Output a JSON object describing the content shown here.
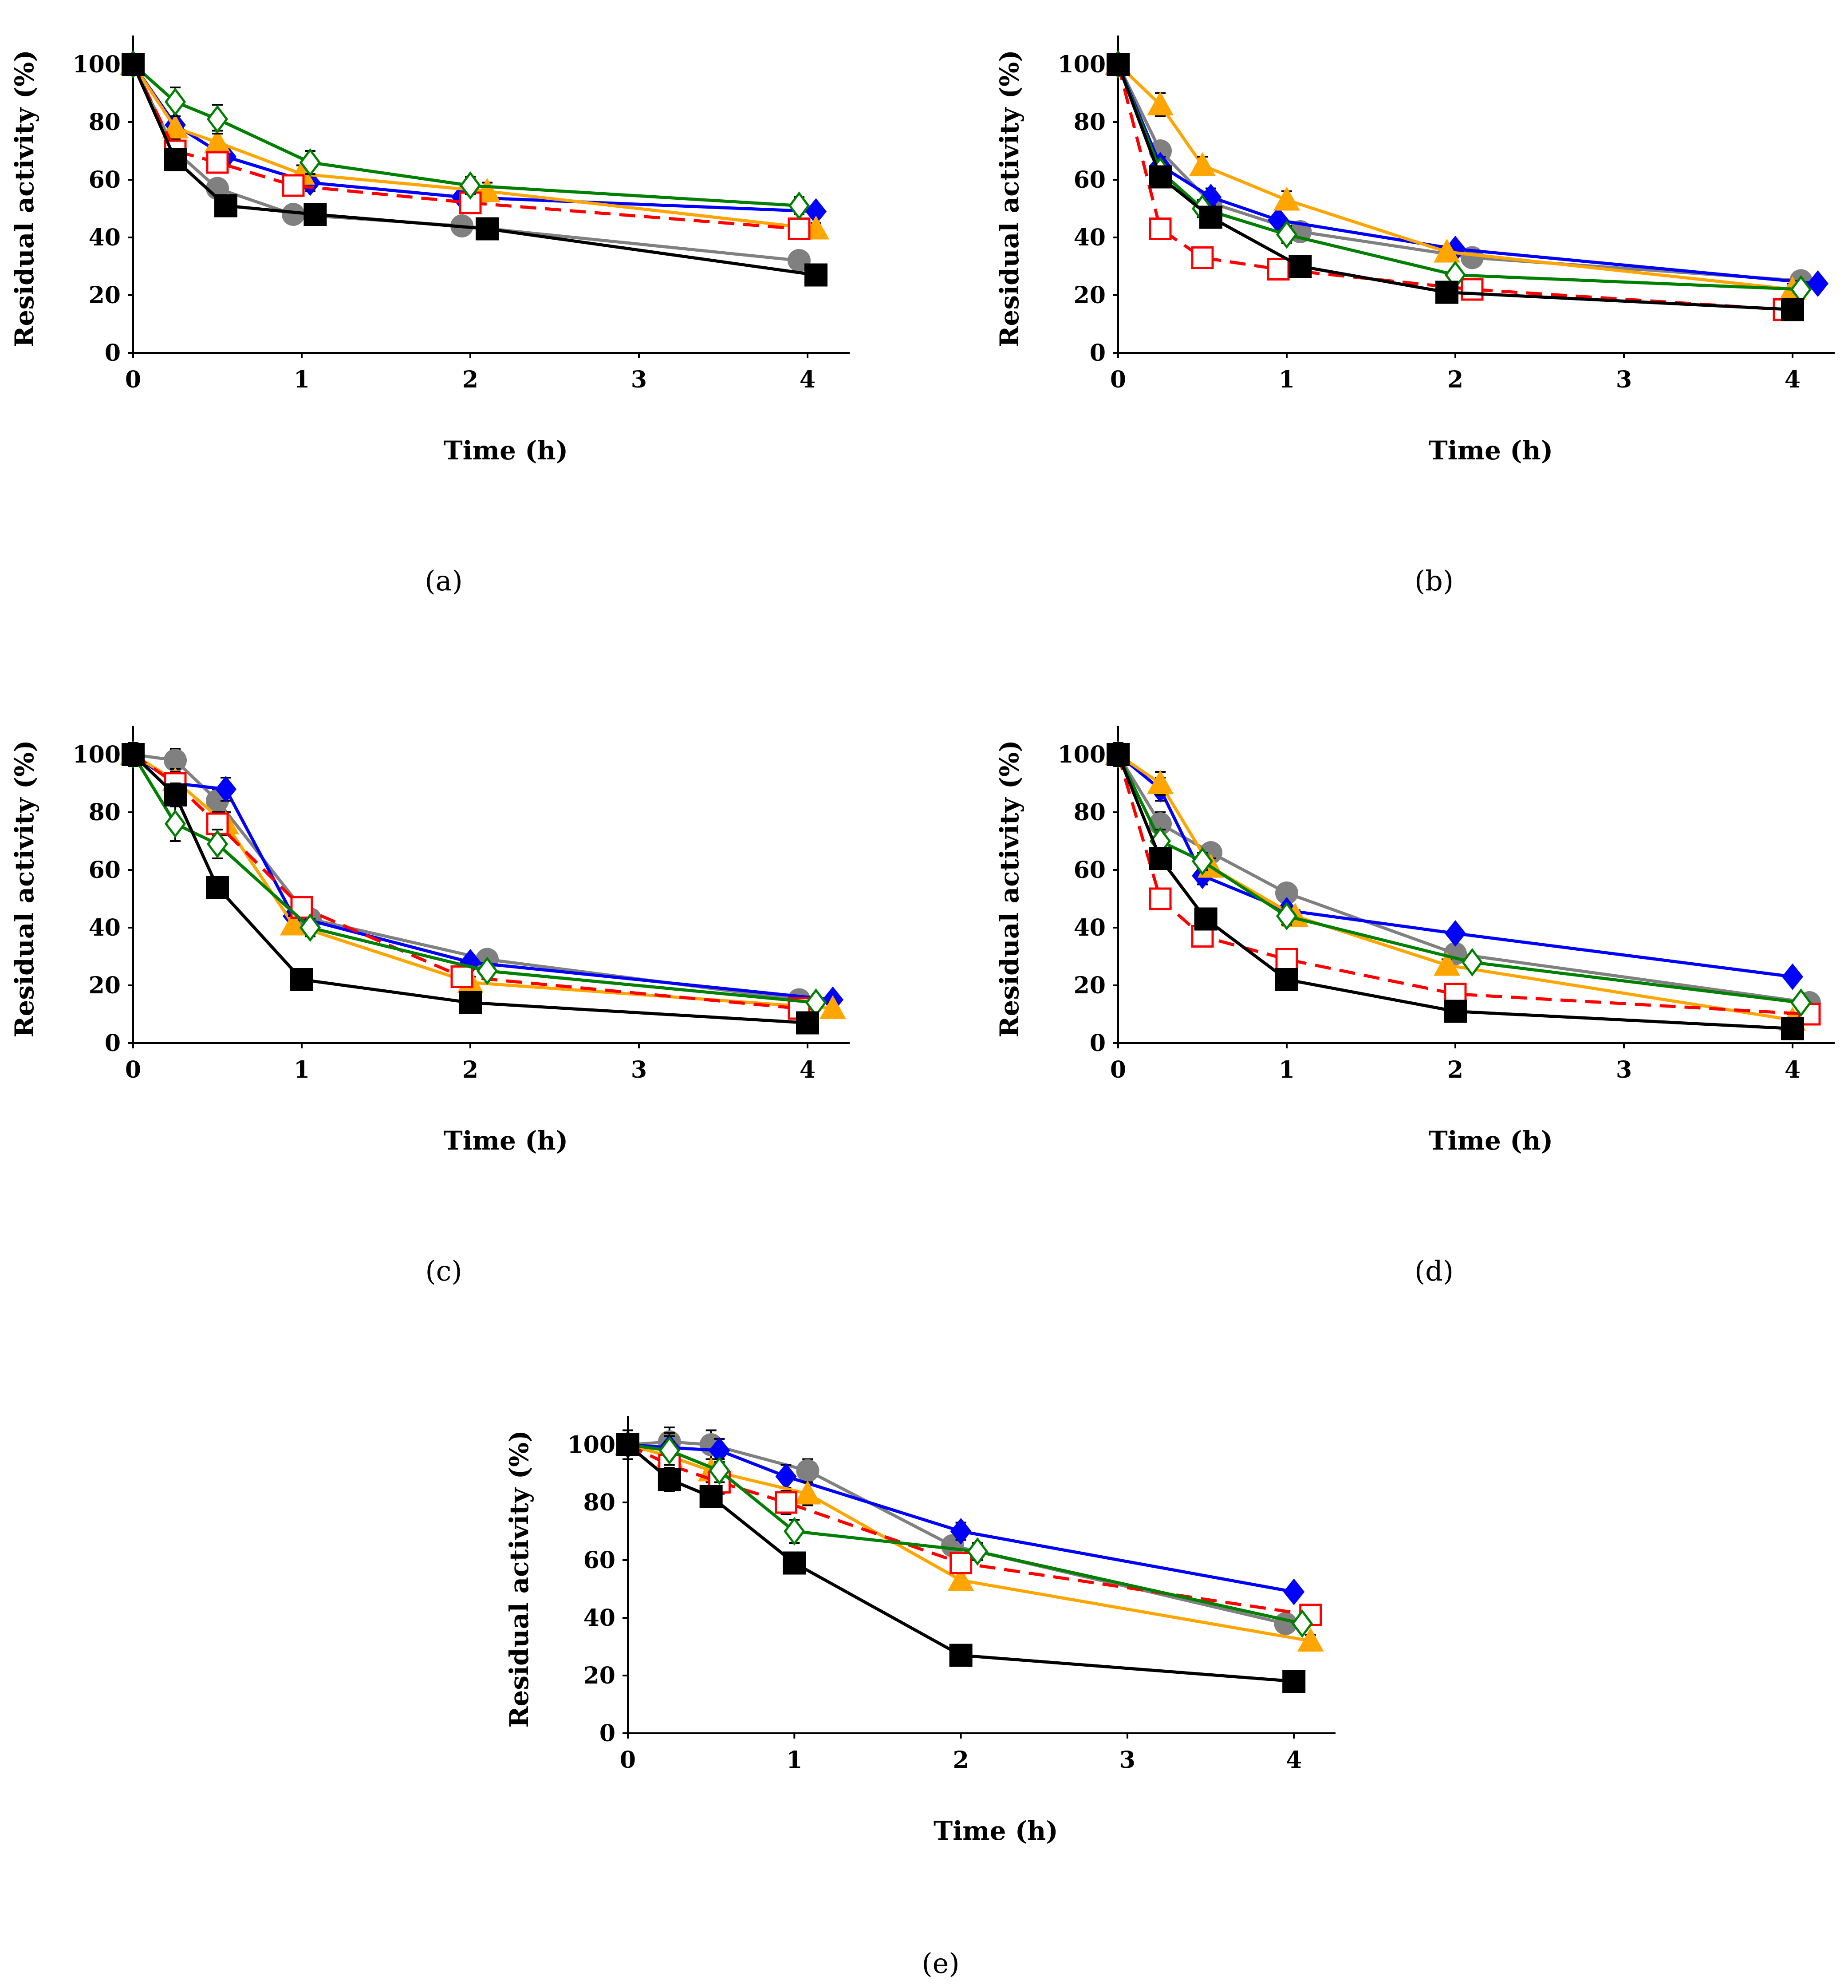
{
  "chart_data": [
    {
      "type": "line",
      "panel_label": "(a)",
      "xlabel": "Time (h)",
      "ylabel": "Residual activity (%)",
      "xlim": [
        0,
        4.25
      ],
      "ylim": [
        0,
        110
      ],
      "xticks": [
        "0",
        "1",
        "2",
        "3",
        "4"
      ],
      "yticks": [
        "0",
        "20",
        "40",
        "60",
        "80",
        "100"
      ],
      "series": [
        {
          "name": "gray-circle",
          "color": "#808080",
          "marker": "circle",
          "dashed": false,
          "x": [
            0,
            0.25,
            0.5,
            0.95,
            1.95,
            3.95
          ],
          "y": [
            100,
            70,
            57,
            48,
            44,
            32
          ],
          "err": [
            3,
            4,
            3,
            2,
            2,
            2
          ]
        },
        {
          "name": "blue-diamond",
          "color": "#0000ff",
          "marker": "diamond",
          "dashed": false,
          "x": [
            0,
            0.25,
            0.55,
            1.05,
            1.95,
            4.05
          ],
          "y": [
            100,
            79,
            68,
            59,
            54,
            49
          ],
          "err": [
            3,
            3,
            3,
            3,
            2,
            2
          ]
        },
        {
          "name": "orange-triangle",
          "color": "#ffa500",
          "marker": "triangle",
          "dashed": false,
          "x": [
            0,
            0.25,
            0.5,
            1.0,
            2.1,
            4.05
          ],
          "y": [
            100,
            78,
            73,
            62,
            56,
            43
          ],
          "err": [
            3,
            4,
            4,
            3,
            3,
            2
          ]
        },
        {
          "name": "red-open-square",
          "color": "#ff0000",
          "marker": "open-square",
          "dashed": true,
          "x": [
            0,
            0.25,
            0.5,
            0.95,
            2.0,
            3.95
          ],
          "y": [
            100,
            70,
            66,
            58,
            52,
            43
          ],
          "err": [
            3,
            3,
            3,
            3,
            3,
            3
          ]
        },
        {
          "name": "green-open-diamond",
          "color": "#008000",
          "marker": "open-diamond",
          "dashed": false,
          "x": [
            0,
            0.25,
            0.5,
            1.05,
            2.0,
            3.95
          ],
          "y": [
            100,
            87,
            81,
            66,
            58,
            51
          ],
          "err": [
            3,
            5,
            5,
            4,
            3,
            3
          ]
        },
        {
          "name": "black-square",
          "color": "#000000",
          "marker": "square",
          "dashed": false,
          "x": [
            0,
            0.25,
            0.55,
            1.08,
            2.1,
            4.05
          ],
          "y": [
            100,
            67,
            51,
            48,
            43,
            27
          ],
          "err": [
            3,
            3,
            2,
            2,
            2,
            2
          ]
        }
      ]
    },
    {
      "type": "line",
      "panel_label": "(b)",
      "xlabel": "Time (h)",
      "ylabel": "Residual activity (%)",
      "xlim": [
        0,
        4.25
      ],
      "ylim": [
        0,
        110
      ],
      "xticks": [
        "0",
        "1",
        "2",
        "3",
        "4"
      ],
      "yticks": [
        "0",
        "20",
        "40",
        "60",
        "80",
        "100"
      ],
      "series": [
        {
          "name": "gray-circle",
          "color": "#808080",
          "marker": "circle",
          "dashed": false,
          "x": [
            0,
            0.25,
            0.55,
            1.08,
            2.1,
            4.05
          ],
          "y": [
            100,
            70,
            52,
            42,
            33,
            25
          ],
          "err": [
            3,
            3,
            2,
            2,
            2,
            2
          ]
        },
        {
          "name": "blue-diamond",
          "color": "#0000ff",
          "marker": "diamond",
          "dashed": false,
          "x": [
            0,
            0.25,
            0.55,
            0.95,
            2.0,
            4.15
          ],
          "y": [
            100,
            65,
            54,
            46,
            36,
            24
          ],
          "err": [
            3,
            3,
            3,
            2,
            2,
            2
          ]
        },
        {
          "name": "orange-triangle",
          "color": "#ffa500",
          "marker": "triangle",
          "dashed": false,
          "x": [
            0,
            0.25,
            0.5,
            1.0,
            1.95,
            4.0
          ],
          "y": [
            100,
            86,
            65,
            53,
            35,
            22
          ],
          "err": [
            3,
            4,
            3,
            3,
            2,
            2
          ]
        },
        {
          "name": "red-open-square",
          "color": "#ff0000",
          "marker": "open-square",
          "dashed": true,
          "x": [
            0,
            0.25,
            0.5,
            0.95,
            2.1,
            3.95
          ],
          "y": [
            100,
            43,
            33,
            29,
            22,
            15
          ],
          "err": [
            3,
            3,
            2,
            2,
            2,
            2
          ]
        },
        {
          "name": "green-open-diamond",
          "color": "#008000",
          "marker": "open-diamond",
          "dashed": false,
          "x": [
            0,
            0.25,
            0.5,
            1.0,
            2.0,
            4.05
          ],
          "y": [
            100,
            63,
            50,
            41,
            27,
            22
          ],
          "err": [
            3,
            3,
            3,
            3,
            2,
            2
          ]
        },
        {
          "name": "black-square",
          "color": "#000000",
          "marker": "square",
          "dashed": false,
          "x": [
            0,
            0.25,
            0.55,
            1.08,
            1.95,
            4.0
          ],
          "y": [
            100,
            61,
            47,
            30,
            21,
            15
          ],
          "err": [
            3,
            3,
            2,
            2,
            2,
            2
          ]
        }
      ]
    },
    {
      "type": "line",
      "panel_label": "(c)",
      "xlabel": "Time (h)",
      "ylabel": "Residual activity (%)",
      "xlim": [
        0,
        4.25
      ],
      "ylim": [
        0,
        110
      ],
      "xticks": [
        "0",
        "1",
        "2",
        "3",
        "4"
      ],
      "yticks": [
        "0",
        "20",
        "40",
        "60",
        "80",
        "100"
      ],
      "series": [
        {
          "name": "gray-circle",
          "color": "#808080",
          "marker": "circle",
          "dashed": false,
          "x": [
            0,
            0.25,
            0.5,
            1.05,
            2.1,
            3.95
          ],
          "y": [
            100,
            98,
            84,
            43,
            29,
            15
          ],
          "err": [
            4,
            4,
            4,
            3,
            2,
            2
          ]
        },
        {
          "name": "blue-diamond",
          "color": "#0000ff",
          "marker": "diamond",
          "dashed": false,
          "x": [
            0,
            0.25,
            0.55,
            0.95,
            2.0,
            4.15
          ],
          "y": [
            100,
            90,
            88,
            44,
            28,
            15
          ],
          "err": [
            4,
            4,
            4,
            3,
            2,
            2
          ]
        },
        {
          "name": "orange-triangle",
          "color": "#ffa500",
          "marker": "triangle",
          "dashed": false,
          "x": [
            0,
            0.25,
            0.55,
            0.95,
            2.0,
            4.15
          ],
          "y": [
            100,
            91,
            76,
            41,
            21,
            12
          ],
          "err": [
            4,
            4,
            4,
            3,
            2,
            2
          ]
        },
        {
          "name": "red-open-square",
          "color": "#ff0000",
          "marker": "open-square",
          "dashed": true,
          "x": [
            0,
            0.25,
            0.5,
            1.0,
            1.95,
            3.95
          ],
          "y": [
            100,
            90,
            76,
            47,
            23,
            12
          ],
          "err": [
            4,
            4,
            4,
            3,
            2,
            2
          ]
        },
        {
          "name": "green-open-diamond",
          "color": "#008000",
          "marker": "open-diamond",
          "dashed": false,
          "x": [
            0,
            0.25,
            0.5,
            1.05,
            2.1,
            4.05
          ],
          "y": [
            100,
            76,
            69,
            40,
            25,
            14
          ],
          "err": [
            4,
            6,
            5,
            3,
            2,
            2
          ]
        },
        {
          "name": "black-square",
          "color": "#000000",
          "marker": "square",
          "dashed": false,
          "x": [
            0,
            0.25,
            0.5,
            1.0,
            2.0,
            4.0
          ],
          "y": [
            100,
            86,
            54,
            22,
            14,
            7
          ],
          "err": [
            4,
            4,
            2,
            2,
            2,
            2
          ]
        }
      ]
    },
    {
      "type": "line",
      "panel_label": "(d)",
      "xlabel": "Time (h)",
      "ylabel": "Residual activity (%)",
      "xlim": [
        0,
        4.25
      ],
      "ylim": [
        0,
        110
      ],
      "xticks": [
        "0",
        "1",
        "2",
        "3",
        "4"
      ],
      "yticks": [
        "0",
        "20",
        "40",
        "60",
        "80",
        "100"
      ],
      "series": [
        {
          "name": "gray-circle",
          "color": "#808080",
          "marker": "circle",
          "dashed": false,
          "x": [
            0,
            0.25,
            0.55,
            1.0,
            2.0,
            4.1
          ],
          "y": [
            100,
            76,
            66,
            52,
            31,
            14
          ],
          "err": [
            4,
            4,
            3,
            2,
            2,
            2
          ]
        },
        {
          "name": "blue-diamond",
          "color": "#0000ff",
          "marker": "diamond",
          "dashed": false,
          "x": [
            0,
            0.25,
            0.5,
            1.0,
            2.0,
            4.0
          ],
          "y": [
            100,
            88,
            58,
            46,
            38,
            23
          ],
          "err": [
            4,
            4,
            3,
            2,
            2,
            2
          ]
        },
        {
          "name": "orange-triangle",
          "color": "#ffa500",
          "marker": "triangle",
          "dashed": false,
          "x": [
            0,
            0.25,
            0.55,
            1.05,
            1.95,
            4.0
          ],
          "y": [
            100,
            90,
            61,
            44,
            27,
            8
          ],
          "err": [
            4,
            4,
            3,
            2,
            2,
            2
          ]
        },
        {
          "name": "red-open-square",
          "color": "#ff0000",
          "marker": "open-square",
          "dashed": true,
          "x": [
            0,
            0.25,
            0.5,
            1.0,
            2.0,
            4.1
          ],
          "y": [
            100,
            50,
            37,
            29,
            17,
            10
          ],
          "err": [
            4,
            3,
            2,
            2,
            2,
            2
          ]
        },
        {
          "name": "green-open-diamond",
          "color": "#008000",
          "marker": "open-diamond",
          "dashed": false,
          "x": [
            0,
            0.25,
            0.5,
            1.0,
            2.1,
            4.05
          ],
          "y": [
            100,
            70,
            63,
            44,
            28,
            14
          ],
          "err": [
            4,
            4,
            3,
            3,
            2,
            2
          ]
        },
        {
          "name": "black-square",
          "color": "#000000",
          "marker": "square",
          "dashed": false,
          "x": [
            0,
            0.25,
            0.52,
            1.0,
            2.0,
            4.0
          ],
          "y": [
            100,
            64,
            43,
            22,
            11,
            5
          ],
          "err": [
            4,
            3,
            2,
            2,
            2,
            2
          ]
        }
      ]
    },
    {
      "type": "line",
      "panel_label": "(e)",
      "xlabel": "Time (h)",
      "ylabel": "Residual activity (%)",
      "xlim": [
        0,
        4.25
      ],
      "ylim": [
        0,
        110
      ],
      "xticks": [
        "0",
        "1",
        "2",
        "3",
        "4"
      ],
      "yticks": [
        "0",
        "20",
        "40",
        "60",
        "80",
        "100"
      ],
      "series": [
        {
          "name": "gray-circle",
          "color": "#808080",
          "marker": "circle",
          "dashed": false,
          "x": [
            0,
            0.25,
            0.5,
            1.08,
            1.95,
            3.95
          ],
          "y": [
            100,
            101,
            100,
            91,
            65,
            38
          ],
          "err": [
            5,
            5,
            5,
            4,
            3,
            2
          ]
        },
        {
          "name": "blue-diamond",
          "color": "#0000ff",
          "marker": "diamond",
          "dashed": false,
          "x": [
            0,
            0.25,
            0.55,
            0.95,
            2.0,
            4.0
          ],
          "y": [
            100,
            99,
            98,
            89,
            70,
            49
          ],
          "err": [
            5,
            5,
            4,
            4,
            3,
            2
          ]
        },
        {
          "name": "orange-triangle",
          "color": "#ffa500",
          "marker": "triangle",
          "dashed": false,
          "x": [
            0,
            0.25,
            0.5,
            1.08,
            2.0,
            4.1
          ],
          "y": [
            100,
            96,
            91,
            83,
            53,
            32
          ],
          "err": [
            5,
            5,
            4,
            4,
            3,
            2
          ]
        },
        {
          "name": "red-open-square",
          "color": "#ff0000",
          "marker": "open-square",
          "dashed": true,
          "x": [
            0,
            0.25,
            0.55,
            0.95,
            2.0,
            4.1
          ],
          "y": [
            100,
            93,
            87,
            80,
            59,
            41
          ],
          "err": [
            5,
            5,
            4,
            4,
            3,
            2
          ]
        },
        {
          "name": "green-open-diamond",
          "color": "#008000",
          "marker": "open-diamond",
          "dashed": false,
          "x": [
            0,
            0.25,
            0.55,
            1.0,
            2.1,
            4.05
          ],
          "y": [
            100,
            98,
            91,
            70,
            63,
            38
          ],
          "err": [
            5,
            5,
            4,
            4,
            3,
            2
          ]
        },
        {
          "name": "black-square",
          "color": "#000000",
          "marker": "square",
          "dashed": false,
          "x": [
            0,
            0.25,
            0.5,
            1.0,
            2.0,
            4.0
          ],
          "y": [
            100,
            88,
            82,
            59,
            27,
            18
          ],
          "err": [
            5,
            4,
            3,
            2,
            2,
            2
          ]
        }
      ]
    }
  ]
}
